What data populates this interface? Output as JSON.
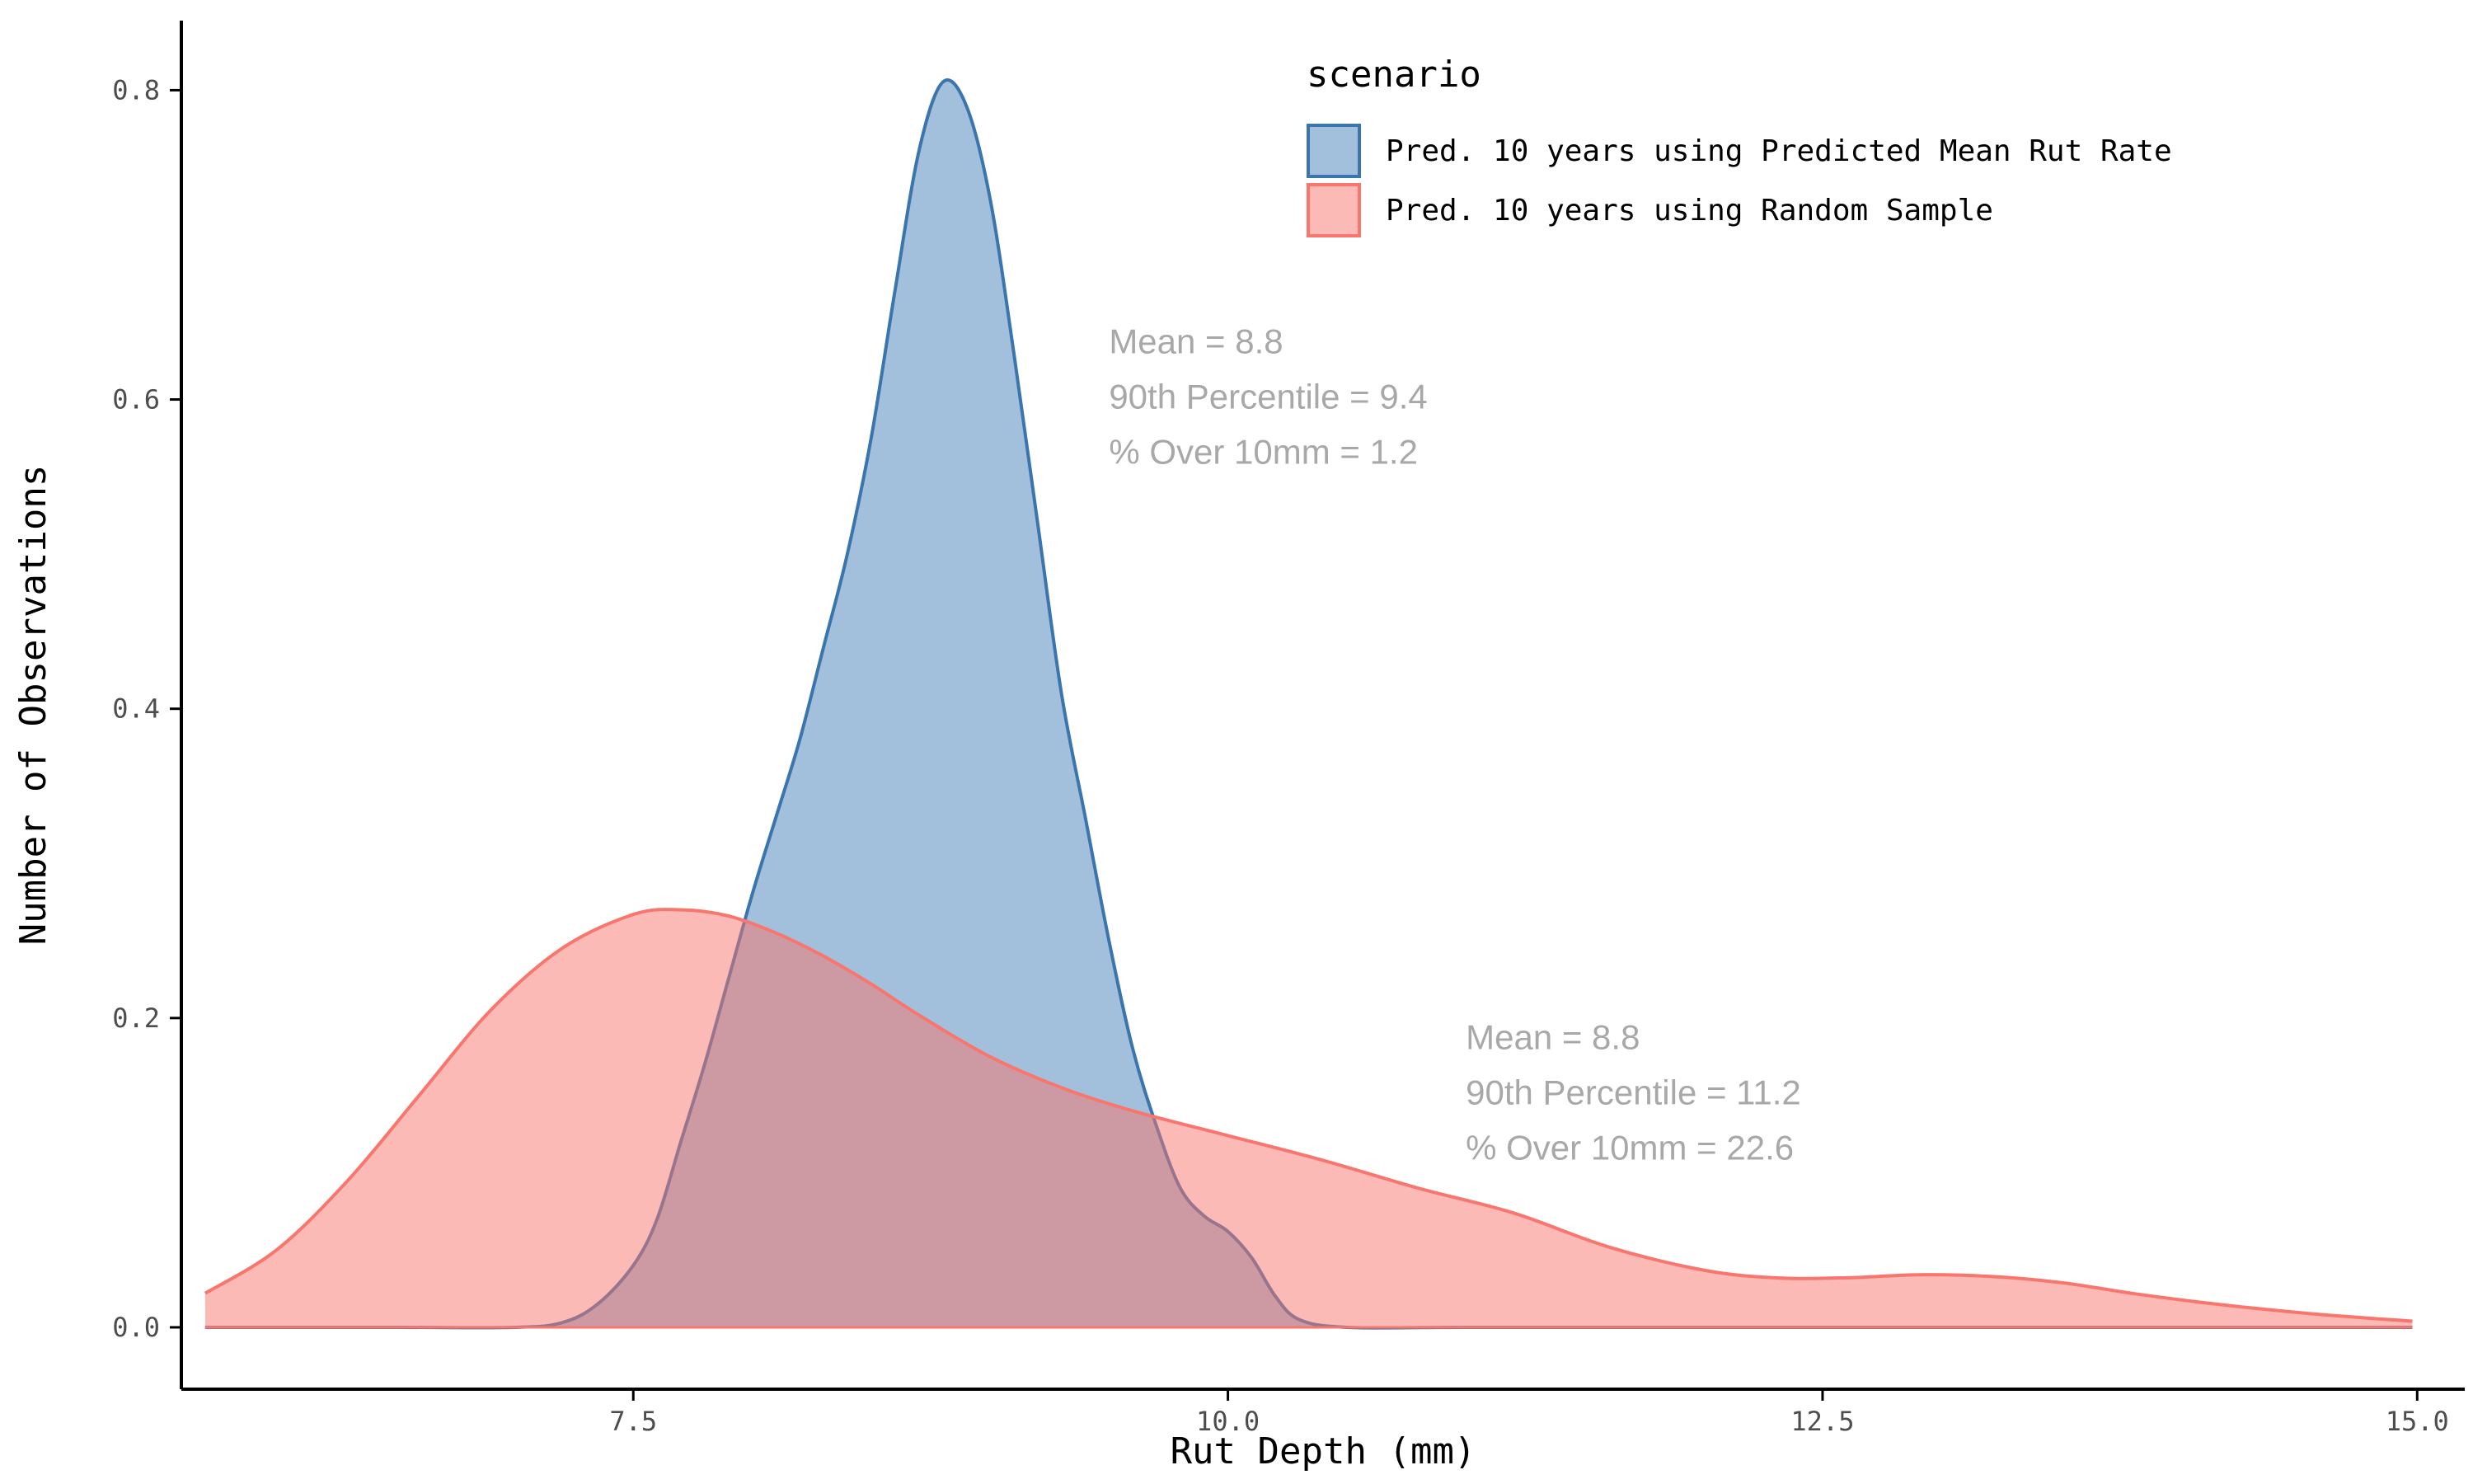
{
  "chart_data": {
    "type": "area",
    "xlabel": "Rut Depth (mm)",
    "ylabel": "Number of Observations",
    "xlim": [
      5.6,
      15.2
    ],
    "ylim": [
      -0.04,
      0.845
    ],
    "x_ticks": [
      7.5,
      10.0,
      12.5,
      15.0
    ],
    "x_tick_labels": [
      "7.5",
      "10.0",
      "12.5",
      "15.0"
    ],
    "y_ticks": [
      0.0,
      0.2,
      0.4,
      0.6,
      0.8
    ],
    "y_tick_labels": [
      "0.0",
      "0.2",
      "0.4",
      "0.6",
      "0.8"
    ],
    "grid": false,
    "legend": {
      "title": "scenario",
      "position": "top-right"
    },
    "series": [
      {
        "name": "Pred. 10 years using Predicted Mean Rut Rate",
        "fill": "#a2bfdb",
        "stroke": "#3b75ad",
        "fill_opacity": 1,
        "x": [
          5.7,
          6.5,
          7.0,
          7.2,
          7.35,
          7.5,
          7.6,
          7.7,
          7.8,
          7.9,
          8.0,
          8.1,
          8.2,
          8.3,
          8.4,
          8.5,
          8.6,
          8.7,
          8.8,
          8.9,
          9.0,
          9.1,
          9.2,
          9.3,
          9.4,
          9.5,
          9.6,
          9.7,
          9.8,
          9.9,
          10.0,
          10.1,
          10.2,
          10.3,
          10.5,
          11.0,
          12.0,
          13.0,
          14.0,
          14.98
        ],
        "y": [
          0.0,
          0.0,
          0.0,
          0.003,
          0.015,
          0.04,
          0.07,
          0.12,
          0.17,
          0.225,
          0.28,
          0.33,
          0.38,
          0.44,
          0.5,
          0.575,
          0.67,
          0.76,
          0.805,
          0.79,
          0.73,
          0.63,
          0.52,
          0.41,
          0.33,
          0.25,
          0.18,
          0.13,
          0.09,
          0.072,
          0.062,
          0.045,
          0.02,
          0.005,
          0.0,
          0.0,
          0.0,
          0.0,
          0.0,
          0.0
        ]
      },
      {
        "name": "Pred. 10 years using Random Sample",
        "fill": "#f8766d",
        "stroke": "#f8766d",
        "fill_opacity": 0.5,
        "x": [
          5.7,
          6.0,
          6.3,
          6.6,
          6.9,
          7.2,
          7.5,
          7.7,
          7.9,
          8.1,
          8.3,
          8.5,
          8.7,
          9.0,
          9.3,
          9.6,
          10.0,
          10.4,
          10.8,
          11.2,
          11.6,
          12.0,
          12.3,
          12.6,
          12.9,
          13.2,
          13.5,
          13.8,
          14.1,
          14.4,
          14.7,
          14.98
        ],
        "y": [
          0.022,
          0.05,
          0.095,
          0.15,
          0.205,
          0.245,
          0.267,
          0.27,
          0.266,
          0.255,
          0.24,
          0.222,
          0.202,
          0.175,
          0.155,
          0.14,
          0.124,
          0.108,
          0.09,
          0.074,
          0.052,
          0.037,
          0.032,
          0.032,
          0.034,
          0.033,
          0.029,
          0.022,
          0.016,
          0.011,
          0.007,
          0.004
        ]
      }
    ],
    "annotations": [
      {
        "x": 9.5,
        "y": 0.63,
        "lines": [
          "Mean = 8.8",
          "90th Percentile = 9.4",
          "% Over 10mm = 1.2"
        ]
      },
      {
        "x": 11.0,
        "y": 0.18,
        "lines": [
          "Mean = 8.8",
          "90th Percentile = 11.2",
          "% Over 10mm = 22.6"
        ]
      }
    ]
  }
}
